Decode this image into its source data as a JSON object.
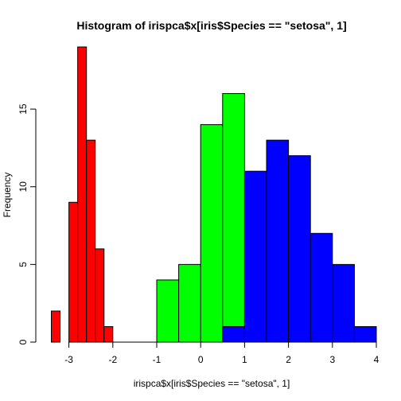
{
  "chart_data": {
    "type": "bar",
    "title": "Histogram of irispca$x[iris$Species == \"setosa\", 1]",
    "xlabel": "irispca$x[iris$Species == \"setosa\", 1]",
    "ylabel": "Frequency",
    "xlim": [
      -3.5,
      4
    ],
    "ylim": [
      0,
      19
    ],
    "x_ticks": [
      -3,
      -2,
      -1,
      0,
      1,
      2,
      3,
      4
    ],
    "y_ticks": [
      0,
      5,
      10,
      15
    ],
    "grid": false,
    "series": [
      {
        "color": "#ff0000",
        "bins": [
          {
            "x0": -3.4,
            "x1": -3.2,
            "count": 2
          },
          {
            "x0": -3.2,
            "x1": -3.0,
            "count": 0
          },
          {
            "x0": -3.0,
            "x1": -2.8,
            "count": 9
          },
          {
            "x0": -2.8,
            "x1": -2.6,
            "count": 19
          },
          {
            "x0": -2.6,
            "x1": -2.4,
            "count": 13
          },
          {
            "x0": -2.4,
            "x1": -2.2,
            "count": 6
          },
          {
            "x0": -2.2,
            "x1": -2.0,
            "count": 1
          }
        ]
      },
      {
        "color": "#00ff00",
        "bins": [
          {
            "x0": -1.0,
            "x1": -0.5,
            "count": 4
          },
          {
            "x0": -0.5,
            "x1": 0.0,
            "count": 5
          },
          {
            "x0": 0.0,
            "x1": 0.5,
            "count": 14
          },
          {
            "x0": 0.5,
            "x1": 1.0,
            "count": 16
          }
        ]
      },
      {
        "color": "#0000ff",
        "bins": [
          {
            "x0": 0.5,
            "x1": 1.0,
            "count": 1
          },
          {
            "x0": 1.0,
            "x1": 1.5,
            "count": 11
          },
          {
            "x0": 1.5,
            "x1": 2.0,
            "count": 13
          },
          {
            "x0": 2.0,
            "x1": 2.5,
            "count": 12
          },
          {
            "x0": 2.5,
            "x1": 3.0,
            "count": 7
          },
          {
            "x0": 3.0,
            "x1": 3.5,
            "count": 5
          },
          {
            "x0": 3.5,
            "x1": 4.0,
            "count": 1
          }
        ]
      }
    ]
  }
}
